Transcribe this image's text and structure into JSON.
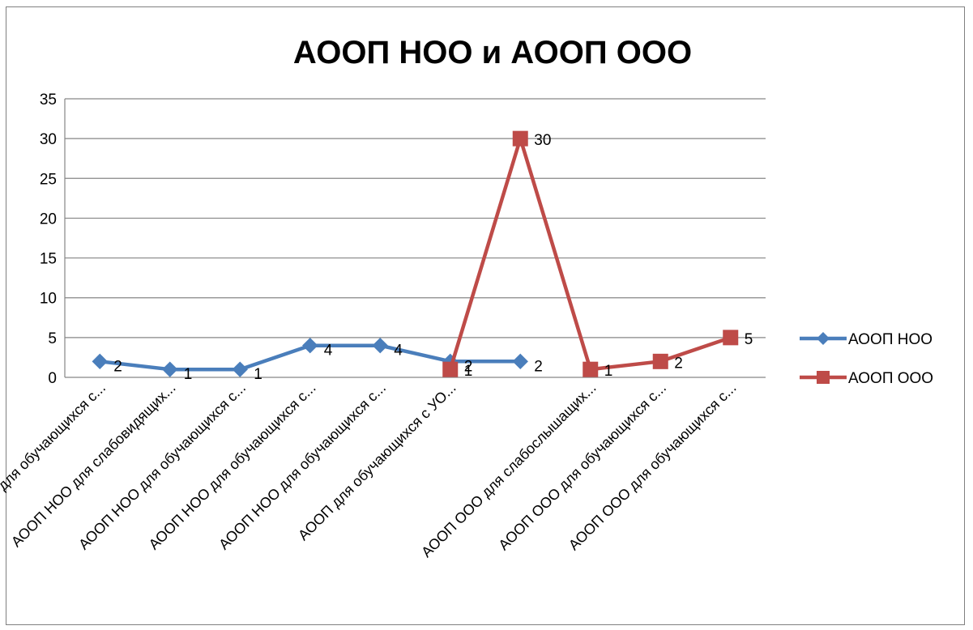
{
  "chart_data": {
    "type": "line",
    "title": "АООП НОО и АООП ООО",
    "xlabel": "",
    "ylabel": "",
    "ylim": [
      0,
      35
    ],
    "yticks": [
      0,
      5,
      10,
      15,
      20,
      25,
      30,
      35
    ],
    "grid": true,
    "legend_position": "right",
    "categories": [
      "АООП НОО для обучающихся с...",
      "АООП НОО для слабовидящих...",
      "АООП НОО для обучающихся с...",
      "АООП НОО для обучающихся с...",
      "АООП НОО для обучающихся с...",
      "АООП для обучающихся с УО...",
      "",
      "АООП ООО  для слабослышащих...",
      "АООП ООО для обучающихся с...",
      "АООП ООО для обучающихся с..."
    ],
    "series": [
      {
        "name": "АООП НОО",
        "color": "#4a7ebb",
        "marker": "diamond",
        "values": [
          2,
          1,
          1,
          4,
          4,
          2,
          2,
          null,
          null,
          null
        ]
      },
      {
        "name": "АООП ООО",
        "color": "#be4b48",
        "marker": "square",
        "values": [
          null,
          null,
          null,
          null,
          null,
          1,
          30,
          1,
          2,
          5
        ]
      }
    ]
  }
}
